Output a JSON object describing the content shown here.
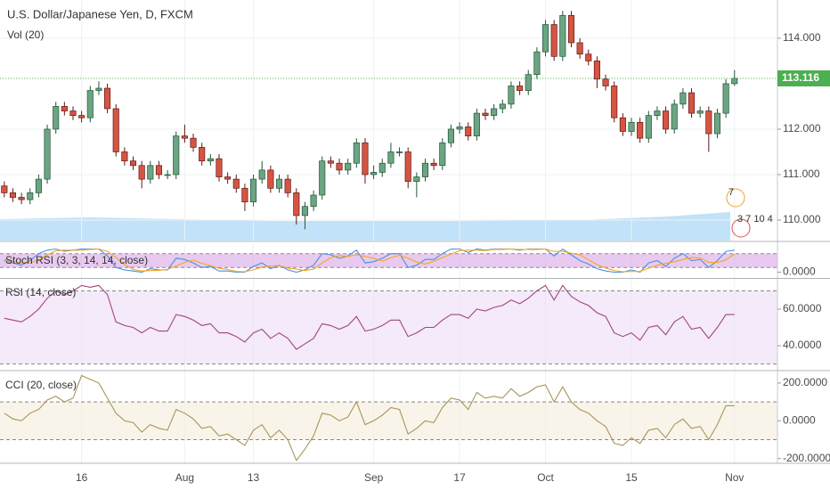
{
  "chart_data": [
    {
      "type": "candlestick",
      "title": "U.S. Dollar/Japanese Yen, D, FXCM",
      "subtitle": "Vol (20)",
      "open": [
        110.75,
        110.6,
        110.5,
        110.45,
        110.6,
        110.9,
        112.0,
        112.5,
        112.4,
        112.3,
        112.25,
        112.85,
        112.9,
        112.45,
        111.5,
        111.3,
        111.2,
        110.9,
        111.2,
        111.0,
        111.0,
        111.85,
        111.8,
        111.6,
        111.3,
        111.35,
        110.95,
        110.9,
        110.7,
        110.4,
        110.9,
        111.1,
        110.7,
        110.9,
        110.6,
        110.1,
        110.3,
        110.55,
        111.3,
        111.25,
        111.1,
        111.25,
        111.7,
        111.0,
        111.05,
        111.25,
        111.5,
        111.5,
        110.85,
        110.95,
        111.25,
        111.2,
        111.7,
        112.0,
        112.05,
        111.85,
        112.35,
        112.3,
        112.45,
        112.55,
        112.95,
        112.85,
        113.2,
        113.7,
        114.3,
        113.6,
        114.5,
        113.9,
        113.65,
        113.5,
        113.1,
        112.95,
        112.25,
        111.95,
        112.15,
        111.8,
        112.3,
        112.4,
        112.0,
        112.55,
        112.8,
        112.35,
        112.4,
        111.9,
        112.35,
        113.0
      ],
      "high": [
        110.85,
        110.7,
        110.6,
        110.7,
        111.0,
        112.1,
        112.6,
        112.6,
        112.5,
        112.4,
        112.95,
        113.05,
        113.0,
        112.55,
        111.6,
        111.4,
        111.3,
        111.3,
        111.3,
        111.1,
        111.95,
        112.1,
        111.9,
        111.7,
        111.45,
        111.45,
        111.05,
        111.0,
        110.8,
        111.0,
        111.3,
        111.2,
        111.0,
        111.0,
        110.7,
        110.4,
        110.65,
        111.4,
        111.4,
        111.35,
        111.35,
        111.8,
        111.8,
        111.2,
        111.35,
        111.7,
        111.6,
        111.6,
        111.05,
        111.35,
        111.35,
        111.8,
        112.1,
        112.15,
        112.15,
        112.45,
        112.45,
        112.55,
        112.65,
        113.05,
        113.05,
        113.3,
        113.8,
        114.4,
        114.4,
        114.6,
        114.6,
        114.0,
        113.75,
        113.6,
        113.2,
        113.05,
        112.35,
        112.25,
        112.25,
        112.4,
        112.5,
        112.5,
        112.65,
        112.9,
        112.9,
        112.5,
        112.5,
        112.45,
        113.1,
        113.3
      ],
      "low": [
        110.5,
        110.4,
        110.35,
        110.35,
        110.5,
        110.8,
        111.9,
        112.3,
        112.2,
        112.15,
        112.15,
        112.75,
        112.35,
        111.4,
        111.2,
        111.1,
        110.7,
        110.8,
        110.9,
        110.9,
        110.9,
        111.7,
        111.5,
        111.2,
        111.2,
        110.85,
        110.8,
        110.6,
        110.2,
        110.3,
        110.8,
        110.6,
        110.6,
        110.5,
        109.9,
        109.8,
        110.2,
        110.45,
        111.15,
        111.0,
        111.0,
        111.15,
        110.8,
        110.9,
        110.95,
        111.15,
        111.4,
        110.7,
        110.5,
        110.85,
        111.1,
        111.1,
        111.6,
        111.9,
        111.75,
        111.75,
        112.2,
        112.2,
        112.35,
        112.45,
        112.75,
        112.75,
        113.1,
        113.6,
        113.5,
        113.5,
        113.8,
        113.55,
        113.4,
        112.9,
        112.85,
        112.15,
        111.85,
        111.85,
        111.7,
        111.7,
        112.2,
        111.9,
        111.9,
        112.45,
        112.25,
        112.25,
        111.5,
        111.8,
        112.25,
        112.95
      ],
      "close": [
        110.6,
        110.5,
        110.45,
        110.6,
        110.9,
        112.0,
        112.5,
        112.4,
        112.3,
        112.25,
        112.85,
        112.9,
        112.45,
        111.5,
        111.3,
        111.2,
        110.9,
        111.2,
        111.0,
        111.0,
        111.85,
        111.8,
        111.6,
        111.3,
        111.35,
        110.95,
        110.9,
        110.7,
        110.4,
        110.9,
        111.1,
        110.7,
        110.9,
        110.6,
        110.1,
        110.3,
        110.55,
        111.3,
        111.25,
        111.1,
        111.25,
        111.7,
        111.0,
        111.05,
        111.25,
        111.5,
        111.5,
        110.85,
        110.95,
        111.25,
        111.2,
        111.7,
        112.0,
        112.05,
        111.85,
        112.35,
        112.3,
        112.45,
        112.55,
        112.95,
        112.85,
        113.2,
        113.7,
        114.3,
        113.6,
        114.5,
        113.9,
        113.65,
        113.5,
        113.1,
        112.95,
        112.25,
        111.95,
        112.15,
        111.8,
        112.3,
        112.4,
        112.0,
        112.55,
        112.8,
        112.35,
        112.4,
        111.9,
        112.35,
        113.0,
        113.116
      ],
      "up_color": "#6ba583",
      "down_color": "#d75442",
      "xlim": [
        -0.5,
        90
      ],
      "xticks": [
        {
          "value": 9,
          "label": "16"
        },
        {
          "value": 21,
          "label": "Aug"
        },
        {
          "value": 29,
          "label": "13"
        },
        {
          "value": 43,
          "label": "Sep"
        },
        {
          "value": 53,
          "label": "17"
        },
        {
          "value": 63,
          "label": "Oct"
        },
        {
          "value": 73,
          "label": "15"
        },
        {
          "value": 85,
          "label": "Nov"
        }
      ],
      "ylim": [
        109.55,
        114.84
      ],
      "yticks": [
        {
          "value": 110,
          "label": "110.000"
        },
        {
          "value": 111,
          "label": "111.000"
        },
        {
          "value": 112,
          "label": "112.000"
        },
        {
          "value": 114,
          "label": "114.000"
        }
      ],
      "last_price": 113.116,
      "last_price_color": "#4caf50",
      "grid": true,
      "annotations": [
        "7",
        "3 7 10 4"
      ]
    },
    {
      "type": "line",
      "title": "Stoch RSI (3, 3, 14, 14, close)",
      "series": [
        {
          "color": "#4a90e2",
          "values": [
            50,
            40,
            30,
            50,
            80,
            95,
            100,
            90,
            95,
            100,
            100,
            100,
            70,
            20,
            10,
            5,
            0,
            15,
            10,
            10,
            60,
            55,
            40,
            20,
            25,
            5,
            5,
            0,
            0,
            25,
            40,
            15,
            30,
            10,
            0,
            10,
            30,
            80,
            75,
            60,
            70,
            95,
            40,
            45,
            60,
            80,
            80,
            20,
            30,
            55,
            55,
            80,
            100,
            100,
            85,
            100,
            95,
            100,
            100,
            100,
            95,
            100,
            100,
            100,
            70,
            100,
            75,
            50,
            35,
            15,
            5,
            0,
            0,
            10,
            0,
            40,
            50,
            25,
            60,
            80,
            50,
            55,
            20,
            50,
            90,
            95
          ]
        },
        {
          "color": "#f5a623",
          "values": [
            55,
            47,
            40,
            40,
            53,
            75,
            92,
            95,
            95,
            95,
            98,
            100,
            90,
            63,
            33,
            12,
            5,
            7,
            8,
            12,
            27,
            42,
            52,
            38,
            28,
            17,
            12,
            3,
            2,
            10,
            22,
            27,
            28,
            18,
            13,
            7,
            13,
            40,
            62,
            72,
            68,
            75,
            68,
            60,
            48,
            62,
            73,
            60,
            43,
            35,
            47,
            63,
            78,
            93,
            95,
            95,
            93,
            98,
            98,
            100,
            98,
            98,
            98,
            100,
            90,
            90,
            82,
            75,
            53,
            33,
            18,
            7,
            2,
            3,
            3,
            17,
            30,
            38,
            45,
            55,
            63,
            62,
            42,
            42,
            53,
            78
          ]
        }
      ],
      "bands": [
        80,
        20
      ],
      "band_color": "#d9a6e6",
      "ylim": [
        -25,
        125
      ],
      "yticks": [
        {
          "value": 0,
          "label": "0.0000"
        }
      ]
    },
    {
      "type": "line",
      "title": "RSI (14, close)",
      "series": [
        {
          "color": "#a0467f",
          "values": [
            55,
            54,
            53,
            56,
            60,
            66,
            70,
            68,
            70,
            73,
            72,
            73,
            68,
            53,
            51,
            50,
            47,
            50,
            48,
            48,
            57,
            56,
            54,
            51,
            52,
            47,
            47,
            45,
            42,
            47,
            49,
            44,
            47,
            44,
            38,
            41,
            44,
            52,
            51,
            49,
            51,
            56,
            48,
            49,
            51,
            54,
            54,
            45,
            47,
            50,
            50,
            54,
            57,
            57,
            55,
            60,
            59,
            61,
            62,
            65,
            63,
            66,
            70,
            73,
            65,
            73,
            67,
            64,
            62,
            58,
            56,
            47,
            45,
            47,
            43,
            50,
            51,
            46,
            53,
            56,
            49,
            50,
            44,
            50,
            57,
            57
          ]
        }
      ],
      "bands": [
        70,
        30
      ],
      "band_color": "#ecdcf5",
      "ylim": [
        26.8,
        76.6
      ],
      "yticks": [
        {
          "value": 40,
          "label": "40.0000"
        },
        {
          "value": 60,
          "label": "60.0000"
        }
      ]
    },
    {
      "type": "line",
      "title": "CCI (20, close)",
      "series": [
        {
          "color": "#a89457",
          "values": [
            40,
            10,
            0,
            40,
            60,
            110,
            130,
            100,
            120,
            240,
            220,
            200,
            120,
            40,
            0,
            -10,
            -60,
            -20,
            -40,
            -50,
            60,
            40,
            10,
            -40,
            -30,
            -80,
            -70,
            -100,
            -130,
            -50,
            -20,
            -90,
            -50,
            -100,
            -210,
            -150,
            -80,
            40,
            30,
            0,
            20,
            100,
            -20,
            0,
            30,
            70,
            60,
            -70,
            -40,
            0,
            -10,
            70,
            120,
            110,
            60,
            150,
            120,
            130,
            120,
            170,
            130,
            150,
            180,
            190,
            100,
            180,
            100,
            60,
            40,
            0,
            -30,
            -120,
            -130,
            -90,
            -120,
            -50,
            -40,
            -90,
            -20,
            10,
            -40,
            -30,
            -100,
            -20,
            80,
            80
          ]
        }
      ],
      "bands": [
        100,
        -100
      ],
      "band_color": "#f5ecdc",
      "ylim": [
        -225,
        261
      ],
      "yticks": [
        {
          "value": -200,
          "label": "-200.0000"
        },
        {
          "value": 0,
          "label": "0.0000"
        },
        {
          "value": 200,
          "label": "200.0000"
        }
      ]
    }
  ]
}
